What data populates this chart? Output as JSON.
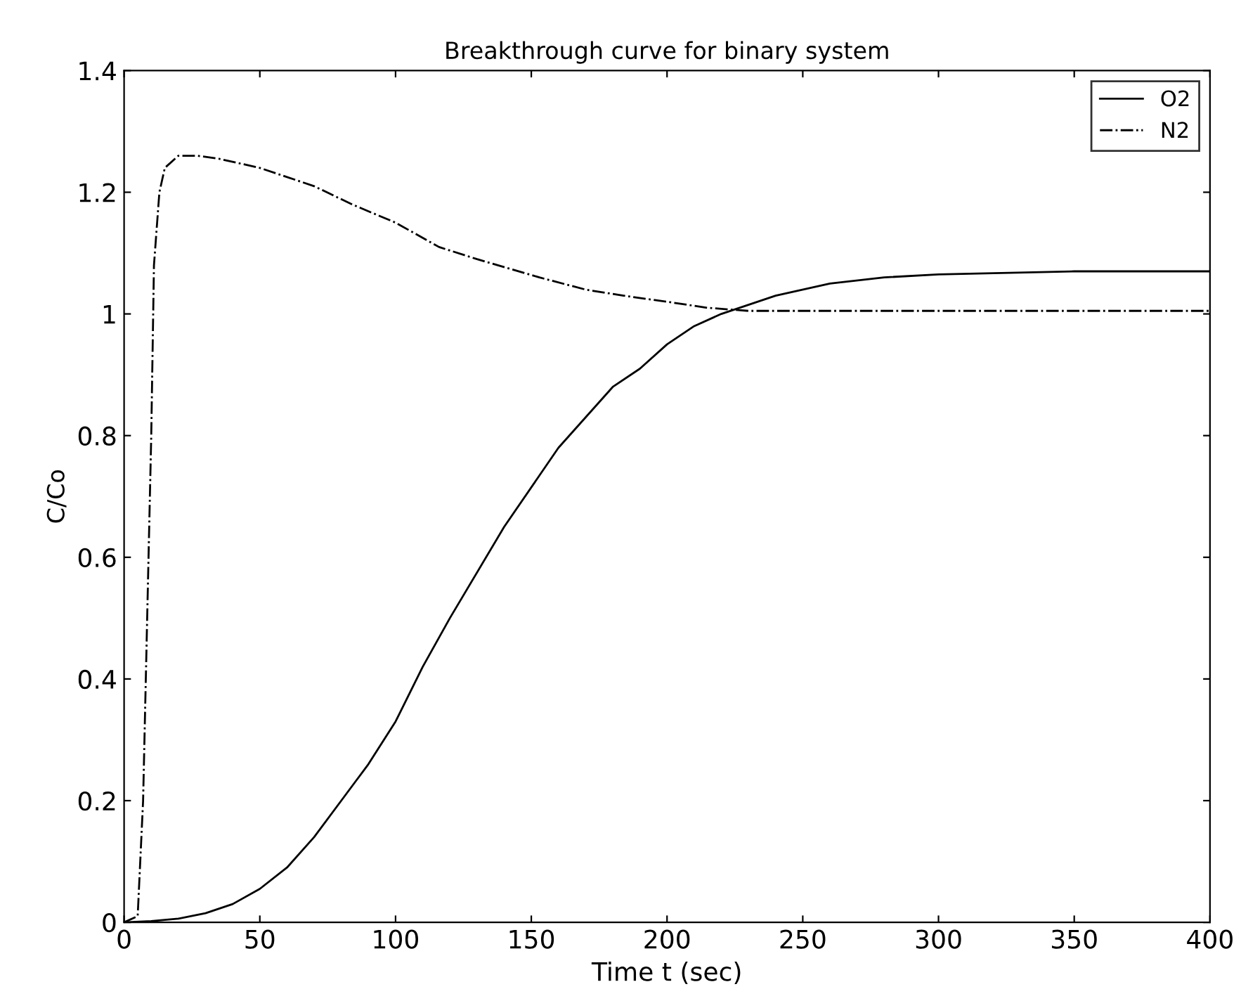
{
  "chart_data": {
    "type": "line",
    "title": "Breakthrough curve for binary system",
    "xlabel": "Time t (sec)",
    "ylabel": "C/Co",
    "series": [
      {
        "name": "O2",
        "color": "#000000",
        "line_style": "solid",
        "x": [
          0,
          10,
          20,
          30,
          40,
          50,
          60,
          70,
          80,
          90,
          100,
          110,
          120,
          140,
          160,
          180,
          190,
          200,
          210,
          220,
          240,
          260,
          280,
          300,
          350,
          400
        ],
        "values": [
          0,
          0.002,
          0.006,
          0.015,
          0.03,
          0.055,
          0.09,
          0.14,
          0.2,
          0.26,
          0.33,
          0.42,
          0.5,
          0.65,
          0.78,
          0.88,
          0.91,
          0.95,
          0.98,
          1.0,
          1.03,
          1.05,
          1.06,
          1.065,
          1.07,
          1.07
        ]
      },
      {
        "name": "N2",
        "color": "#000000",
        "line_style": "dashdot",
        "x": [
          0,
          5,
          7,
          8,
          10,
          11,
          13,
          15,
          20,
          27,
          35,
          50,
          70,
          84,
          100,
          116,
          130,
          153,
          170,
          184,
          200,
          215,
          230,
          250,
          300,
          400
        ],
        "values": [
          0,
          0.01,
          0.2,
          0.4,
          0.8,
          1.08,
          1.2,
          1.24,
          1.26,
          1.26,
          1.255,
          1.24,
          1.21,
          1.18,
          1.15,
          1.11,
          1.09,
          1.06,
          1.04,
          1.03,
          1.02,
          1.01,
          1.005,
          1.005,
          1.005,
          1.005
        ]
      }
    ],
    "xlim": [
      0,
      400
    ],
    "ylim": [
      0,
      1.4
    ],
    "xticks": [
      0,
      50,
      100,
      150,
      200,
      250,
      300,
      350,
      400
    ],
    "yticks": [
      0,
      0.2,
      0.4,
      0.6,
      0.8,
      1,
      1.2,
      1.4
    ],
    "grid": false,
    "legend": "top right"
  }
}
